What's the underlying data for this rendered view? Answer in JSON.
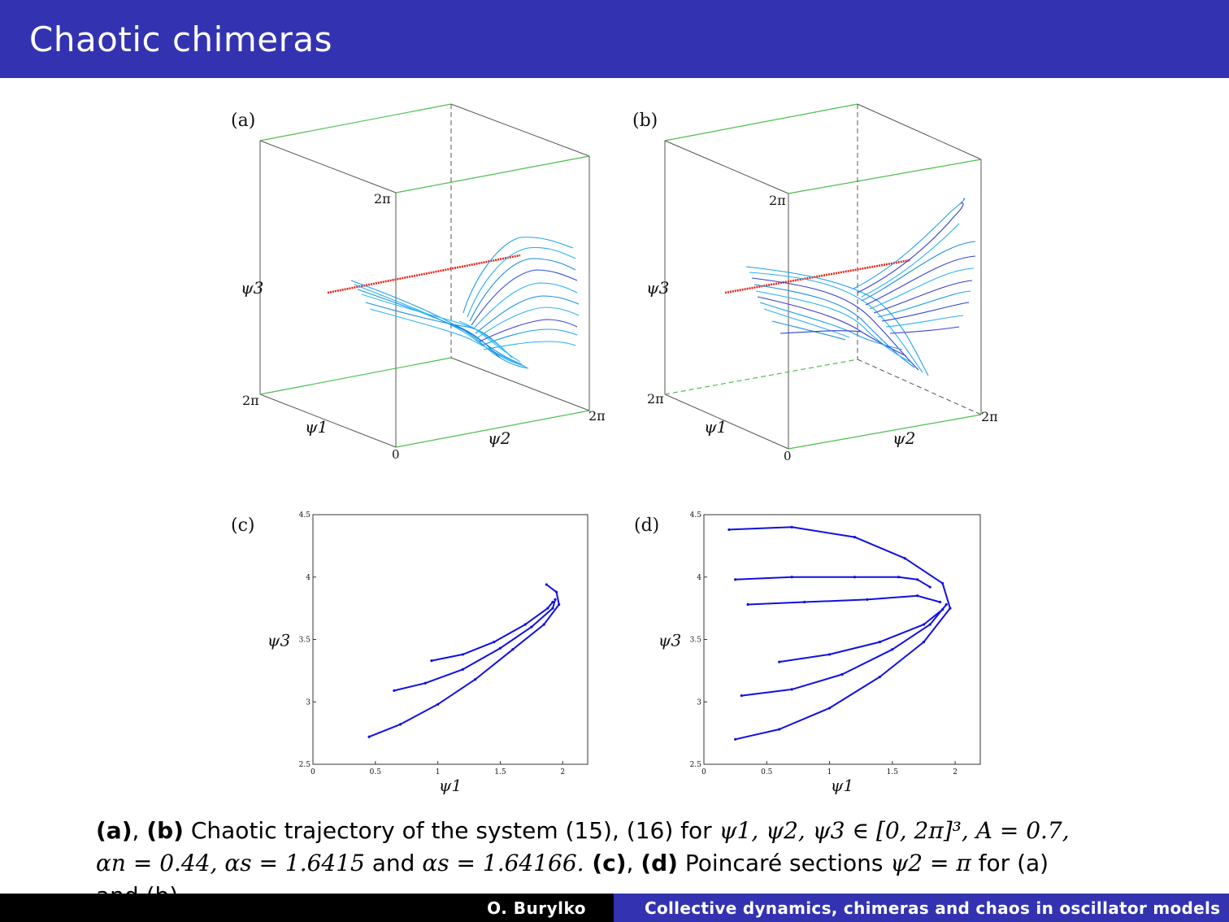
{
  "slide": {
    "title": "Chaotic chimeras"
  },
  "panels": {
    "a": {
      "label": "(a)",
      "tick_top": "2π",
      "tick_left": "2π",
      "tick_right": "2π",
      "tick_origin": "0",
      "axis_psi1": "ψ1",
      "axis_psi2": "ψ2",
      "axis_psi3": "ψ3"
    },
    "b": {
      "label": "(b)",
      "tick_top": "2π",
      "tick_left": "2π",
      "tick_right": "2π",
      "tick_origin": "0",
      "axis_psi1": "ψ1",
      "axis_psi2": "ψ2",
      "axis_psi3": "ψ3"
    },
    "c": {
      "label": "(c)",
      "xlabel": "ψ1",
      "ylabel": "ψ3"
    },
    "d": {
      "label": "(d)",
      "xlabel": "ψ1",
      "ylabel": "ψ3"
    }
  },
  "chart_data": [
    {
      "panel": "(c)",
      "type": "scatter",
      "xlabel": "ψ1",
      "ylabel": "ψ3",
      "xlim": [
        0,
        2.2
      ],
      "ylim": [
        2.5,
        4.5
      ],
      "xticks": [
        "0",
        "0.5",
        "1",
        "1.5",
        "2"
      ],
      "yticks": [
        "2.5",
        "3",
        "3.5",
        "4",
        "4.5"
      ],
      "color": "#1010e0",
      "series": [
        {
          "x": [
            0.45,
            0.7,
            1.0,
            1.3,
            1.6,
            1.85,
            1.97,
            1.95,
            1.87
          ],
          "y": [
            2.72,
            2.82,
            2.98,
            3.18,
            3.42,
            3.62,
            3.78,
            3.88,
            3.94
          ]
        },
        {
          "x": [
            0.65,
            0.9,
            1.2,
            1.5,
            1.75,
            1.92,
            1.94
          ],
          "y": [
            3.09,
            3.15,
            3.26,
            3.43,
            3.6,
            3.75,
            3.82
          ]
        },
        {
          "x": [
            0.95,
            1.2,
            1.45,
            1.7,
            1.88,
            1.92
          ],
          "y": [
            3.33,
            3.38,
            3.48,
            3.62,
            3.75,
            3.8
          ]
        }
      ]
    },
    {
      "panel": "(d)",
      "type": "scatter",
      "xlabel": "ψ1",
      "ylabel": "ψ3",
      "xlim": [
        0,
        2.2
      ],
      "ylim": [
        2.5,
        4.5
      ],
      "xticks": [
        "0",
        "0.5",
        "1",
        "1.5",
        "2"
      ],
      "yticks": [
        "2.5",
        "3",
        "3.5",
        "4",
        "4.5"
      ],
      "color": "#1010e0",
      "series": [
        {
          "x": [
            0.25,
            0.6,
            1.0,
            1.4,
            1.75,
            1.96,
            1.9,
            1.6,
            1.2,
            0.7,
            0.2
          ],
          "y": [
            2.7,
            2.78,
            2.95,
            3.2,
            3.48,
            3.75,
            3.95,
            4.15,
            4.32,
            4.4,
            4.38
          ]
        },
        {
          "x": [
            0.3,
            0.7,
            1.1,
            1.5,
            1.8,
            1.93
          ],
          "y": [
            3.05,
            3.1,
            3.22,
            3.42,
            3.62,
            3.78
          ]
        },
        {
          "x": [
            0.25,
            0.7,
            1.2,
            1.55,
            1.7,
            1.8
          ],
          "y": [
            3.98,
            4.0,
            4.0,
            4.0,
            3.98,
            3.92
          ]
        },
        {
          "x": [
            0.35,
            0.8,
            1.3,
            1.7,
            1.88
          ],
          "y": [
            3.78,
            3.8,
            3.82,
            3.85,
            3.8
          ]
        },
        {
          "x": [
            0.6,
            1.0,
            1.4,
            1.75,
            1.9
          ],
          "y": [
            3.32,
            3.38,
            3.48,
            3.62,
            3.74
          ]
        }
      ]
    }
  ],
  "caption": {
    "l1_a": "(a)",
    "l1_sep": ", ",
    "l1_b": "(b)",
    "l1_text": " Chaotic trajectory of the system (15), (16) for ",
    "l1_math": "ψ1, ψ2, ψ3 ∈ [0, 2π]³, A = 0.7,",
    "l2_math1": "αn = 0.44, αs = 1.6415",
    "l2_and": " and ",
    "l2_math2": "αs = 1.64166.",
    "l2_c": " (c)",
    "l2_sep": ", ",
    "l2_d": "(d)",
    "l2_text": " Poincaré sections ",
    "l2_math3": "ψ2 = π",
    "l2_tail": " for (a)",
    "l3_text": "and (b)."
  },
  "footer": {
    "author": "O. Burylko",
    "talk_title": "Collective dynamics, chimeras and chaos in oscillator models"
  },
  "colors": {
    "title_bar": "#3333b2",
    "footer_left": "#000000",
    "footer_right": "#3333b2",
    "trajectory": "#1fa0e8",
    "trajectory_dark": "#2a2ad0",
    "fixed_line": "#e0251a",
    "box_edge_green": "#4cbf4c",
    "poincare_points": "#1010e0"
  }
}
